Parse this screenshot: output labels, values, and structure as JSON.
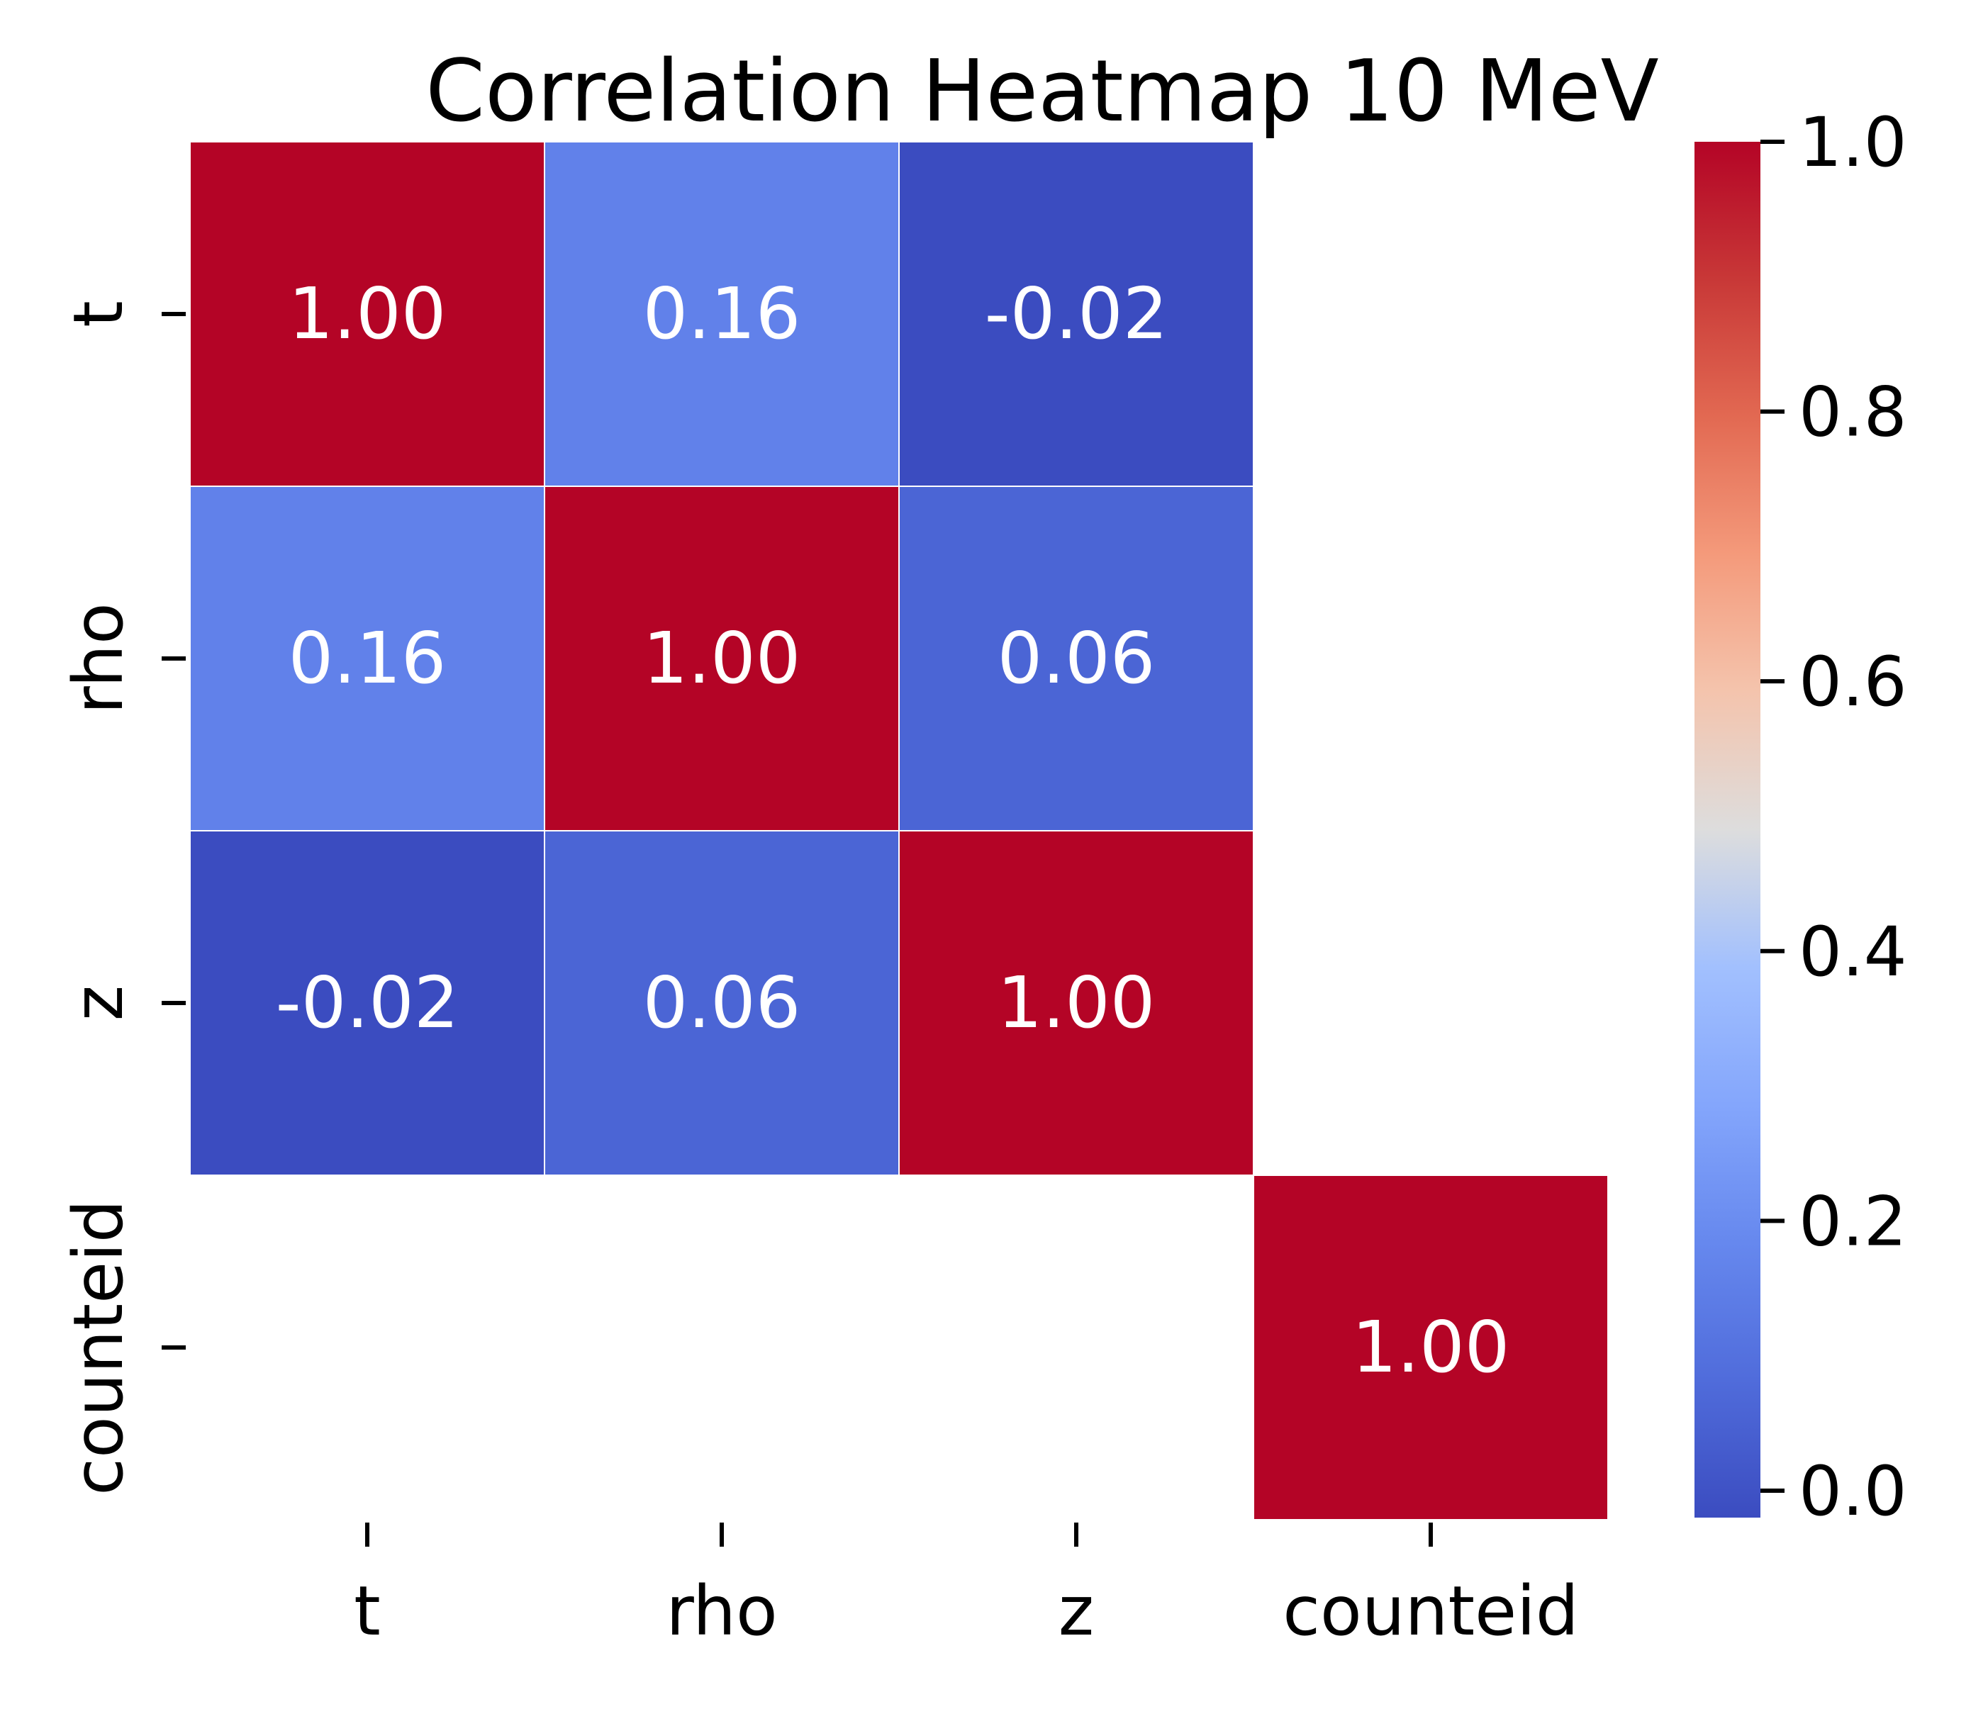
{
  "chart_data": {
    "type": "heatmap",
    "title": "Correlation Heatmap 10 MeV",
    "xlabel": "",
    "ylabel": "",
    "row_labels": [
      "t",
      "rho",
      "z",
      "counteid"
    ],
    "col_labels": [
      "t",
      "rho",
      "z",
      "counteid"
    ],
    "values": [
      [
        1.0,
        0.16,
        -0.02,
        null
      ],
      [
        0.16,
        1.0,
        0.06,
        null
      ],
      [
        -0.02,
        0.06,
        1.0,
        null
      ],
      [
        null,
        null,
        null,
        1.0
      ]
    ],
    "annotations": [
      [
        "1.00",
        "0.16",
        "-0.02",
        ""
      ],
      [
        "0.16",
        "1.00",
        "0.06",
        ""
      ],
      [
        "-0.02",
        "0.06",
        "1.00",
        ""
      ],
      [
        "",
        "",
        "",
        "1.00"
      ]
    ],
    "colormap": "coolwarm",
    "vmin": -0.02,
    "vmax": 1.0,
    "colorbar": {
      "ticks": [
        0.0,
        0.2,
        0.4,
        0.6,
        0.8,
        1.0
      ],
      "tick_labels": [
        "0.0",
        "0.2",
        "0.4",
        "0.6",
        "0.8",
        "1.0"
      ]
    },
    "grid": false,
    "legend": "colorbar-right"
  },
  "colors": {
    "annotation_text": "#ffffff",
    "cell_border": "#ffffff",
    "axis_text": "#000000"
  }
}
